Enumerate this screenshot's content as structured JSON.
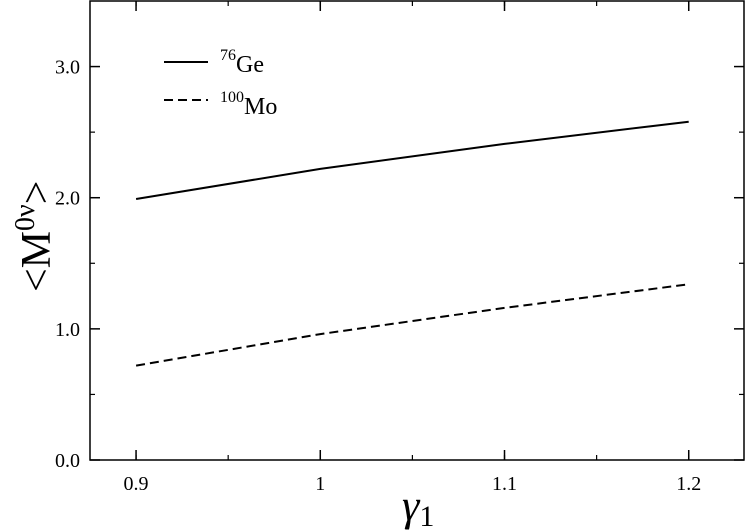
{
  "chart_data": {
    "type": "line",
    "x_axis": {
      "label_main": "γ",
      "label_sub": "1",
      "lim": [
        0.875,
        1.23
      ],
      "ticks": [
        0.9,
        1.0,
        1.1,
        1.2
      ],
      "tick_labels": [
        "0.9",
        "1",
        "1.1",
        "1.2"
      ]
    },
    "y_axis": {
      "label_lt": "<M",
      "label_sup": "0ν",
      "label_gt": ">",
      "lim": [
        0,
        3.5
      ],
      "ticks": [
        0,
        1,
        2,
        3
      ],
      "tick_labels": [
        "0.0",
        "1.0",
        "2.0",
        "3.0"
      ]
    },
    "grid": false,
    "legend_position": "top-left",
    "series": [
      {
        "name_sup": "76",
        "name_base": "Ge",
        "style": "solid",
        "color": "#000000",
        "x": [
          0.9,
          1.0,
          1.1,
          1.2
        ],
        "y": [
          1.99,
          2.22,
          2.41,
          2.58
        ]
      },
      {
        "name_sup": "100",
        "name_base": "Mo",
        "style": "dashed",
        "color": "#000000",
        "x": [
          0.9,
          1.0,
          1.1,
          1.2
        ],
        "y": [
          0.72,
          0.96,
          1.16,
          1.34
        ]
      }
    ]
  }
}
